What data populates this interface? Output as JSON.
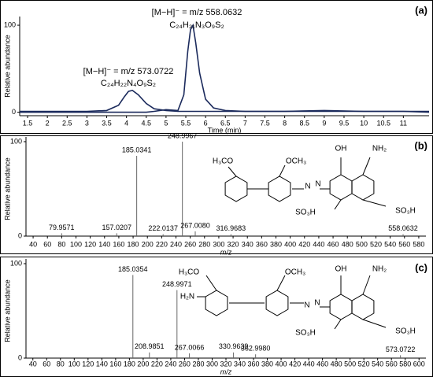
{
  "chart_data": [
    {
      "type": "line",
      "panel_label": "(a)",
      "ylabel": "Relative abundance",
      "xlabel": "Time (min)",
      "annotations": [
        "[M−H]⁻ = m/z 558.0632",
        "C₂₄H₂₁N₃O₉S₂",
        "[M−H]⁻ = m/z 573.0722",
        "C₂₄H₂₂N₄O₉S₂"
      ],
      "x": [
        1.3,
        2,
        3,
        3.5,
        3.8,
        3.95,
        4.05,
        4.15,
        4.3,
        4.5,
        4.7,
        5,
        5.3,
        5.45,
        5.55,
        5.62,
        5.68,
        5.75,
        5.85,
        6,
        6.2,
        6.5,
        7,
        8,
        9,
        10,
        11,
        11.65
      ],
      "series": [
        {
          "color": "#1b2a5c",
          "values": [
            1,
            1,
            1,
            2,
            8,
            18,
            24,
            25,
            20,
            10,
            4,
            2,
            1,
            1,
            1,
            1,
            1,
            1,
            1,
            1,
            1,
            1,
            1,
            1,
            1,
            1,
            1,
            1
          ]
        },
        {
          "color": "#1b2a5c",
          "values": [
            0,
            0,
            0,
            0,
            0,
            0,
            0,
            0,
            0,
            0,
            1,
            3,
            2,
            20,
            70,
            95,
            100,
            80,
            45,
            15,
            5,
            2,
            1,
            1,
            2,
            1,
            1,
            0
          ]
        }
      ],
      "xlim": [
        1.3,
        11.65
      ],
      "xticks": [
        1.5,
        2,
        2.5,
        3,
        3.5,
        4,
        4.5,
        5,
        5.5,
        6,
        6.5,
        7,
        7.5,
        8,
        8.5,
        9,
        9.5,
        10,
        10.5,
        11
      ],
      "ylim": [
        -4,
        110
      ],
      "yticks": [
        0,
        100
      ]
    },
    {
      "type": "stem",
      "panel_label": "(b)",
      "ylabel": "Relative abundance",
      "xlabel": "m/z",
      "x": [
        79.9571,
        157.0207,
        185.0341,
        222.0137,
        248.9967,
        267.008,
        316.9683,
        558.0632
      ],
      "x_labels": [
        "79.9571",
        "157.0207",
        "185.0341",
        "222.0137",
        "248.9967",
        "267.0080",
        "316.9683",
        "558.0632"
      ],
      "values": [
        3,
        3,
        85,
        2,
        100,
        5,
        2,
        2
      ],
      "color": "#666666",
      "structure_labels": [
        "H₃CO",
        "OCH₃",
        "OH",
        "NH₂",
        "N",
        "N",
        "SO₃H",
        "SO₃H"
      ],
      "xlim": [
        30,
        590
      ],
      "xticks": [
        40,
        60,
        80,
        100,
        120,
        140,
        160,
        180,
        200,
        220,
        240,
        260,
        280,
        300,
        320,
        340,
        360,
        380,
        400,
        420,
        440,
        460,
        480,
        500,
        520,
        540,
        560,
        580
      ],
      "ylim": [
        0,
        105
      ],
      "yticks": [
        0,
        100
      ]
    },
    {
      "type": "stem",
      "panel_label": "(c)",
      "ylabel": "Relative abundance",
      "xlabel": "m/z",
      "x": [
        185.0354,
        208.9851,
        248.9971,
        267.0066,
        330.9639,
        362.998,
        573.0722
      ],
      "x_labels": [
        "185.0354",
        "208.9851",
        "248.9971",
        "267.0066",
        "330.9639",
        "362.9980",
        "573.0722"
      ],
      "values": [
        88,
        6,
        72,
        5,
        6,
        4,
        3
      ],
      "color": "#666666",
      "structure_labels": [
        "H₃CO",
        "H₂N",
        "OCH₃",
        "OH",
        "NH₂",
        "N",
        "N",
        "SO₃H",
        "SO₃H"
      ],
      "xlim": [
        30,
        610
      ],
      "xticks": [
        40,
        60,
        80,
        100,
        120,
        140,
        160,
        180,
        200,
        220,
        240,
        260,
        280,
        300,
        320,
        340,
        360,
        380,
        400,
        420,
        440,
        460,
        480,
        500,
        520,
        540,
        560,
        580,
        600
      ],
      "ylim": [
        0,
        105
      ],
      "yticks": [
        0,
        100
      ]
    }
  ]
}
